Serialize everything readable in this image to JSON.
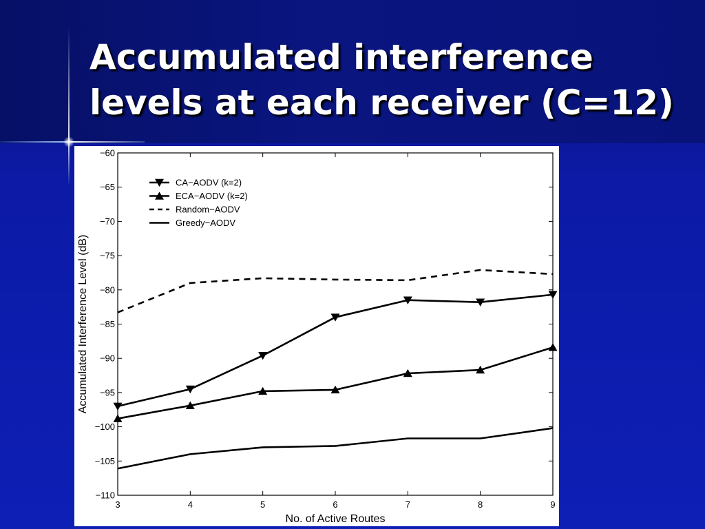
{
  "slide": {
    "title_line1": "Accumulated interference",
    "title_line2": "levels at each receiver (C=12)"
  },
  "colors": {
    "background": "#0d1fb5",
    "title_band": "#0a1580",
    "title_text": "#ffffff",
    "plot_ink": "#000000"
  },
  "chart_data": {
    "type": "line",
    "title": "",
    "xlabel": "No. of Active Routes",
    "ylabel": "Accumulated Interference Level (dB)",
    "xlim": [
      3,
      9
    ],
    "ylim": [
      -110,
      -60
    ],
    "xticks": [
      3,
      4,
      5,
      6,
      7,
      8,
      9
    ],
    "yticks": [
      -60,
      -65,
      -70,
      -75,
      -80,
      -85,
      -90,
      -95,
      -100,
      -105,
      -110
    ],
    "ytick_labels": [
      "−60",
      "−65",
      "−70",
      "−75",
      "−80",
      "−85",
      "−90",
      "−95",
      "−100",
      "−105",
      "−110"
    ],
    "grid": false,
    "legend_position": "top-left",
    "x": [
      3,
      4,
      5,
      6,
      7,
      8,
      9
    ],
    "series": [
      {
        "name": "CA−AODV (k=2)",
        "values": [
          -97.0,
          -94.5,
          -89.6,
          -84.0,
          -81.5,
          -81.8,
          -80.7
        ],
        "line_style": "solid",
        "marker": "triangle-down"
      },
      {
        "name": "ECA−AODV (k=2)",
        "values": [
          -98.8,
          -96.9,
          -94.8,
          -94.6,
          -92.2,
          -91.7,
          -88.4
        ],
        "line_style": "solid",
        "marker": "triangle-up"
      },
      {
        "name": "Random−AODV",
        "values": [
          -83.3,
          -79.0,
          -78.3,
          -78.5,
          -78.6,
          -77.1,
          -77.7
        ],
        "line_style": "dashed",
        "marker": "none"
      },
      {
        "name": "Greedy−AODV",
        "values": [
          -106.1,
          -104.0,
          -103.0,
          -102.8,
          -101.7,
          -101.7,
          -100.2
        ],
        "line_style": "solid",
        "marker": "none"
      }
    ]
  }
}
